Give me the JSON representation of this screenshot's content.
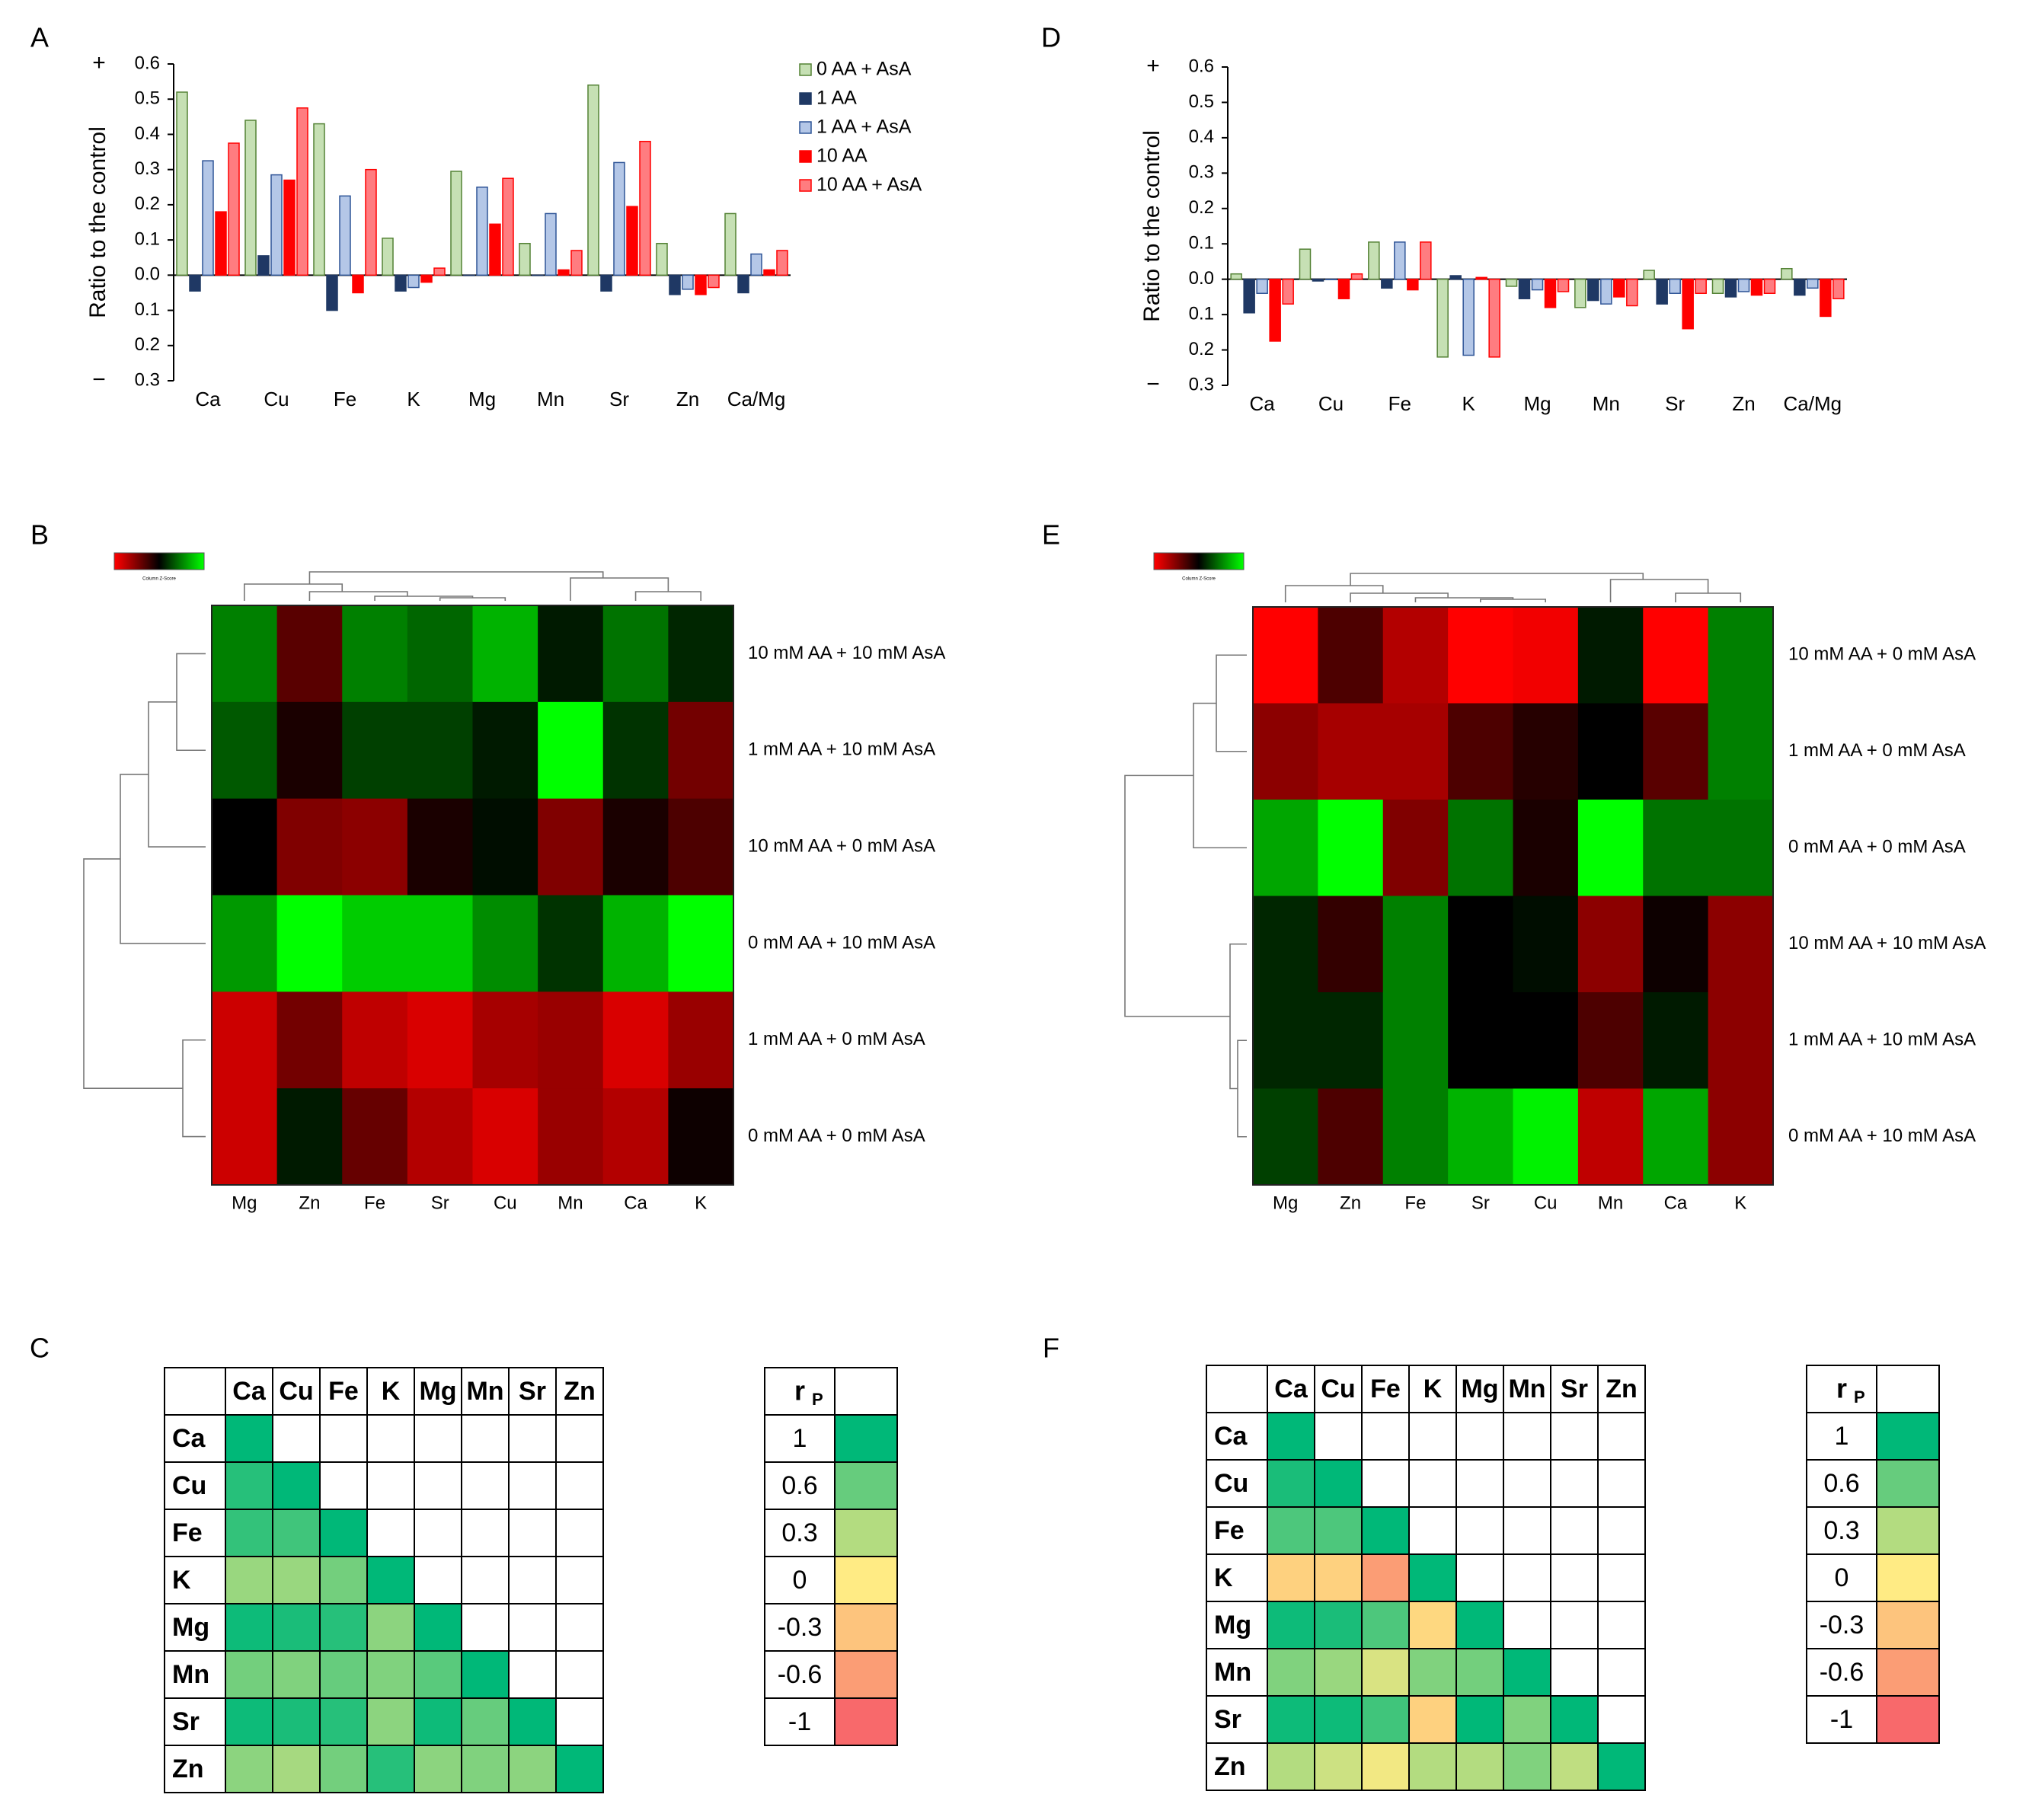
{
  "colors": {
    "s0": "#c6e0b4",
    "s0_stroke": "#548235",
    "s1": "#1f3864",
    "s2": "#b4c7e7",
    "s2_stroke": "#2f5597",
    "s3": "#ff0000",
    "s4": "#ff7c80",
    "s4_stroke": "#ff0000",
    "heat_red": "#ff0000",
    "heat_green": "#00ff00",
    "corr_pos": "#00b878",
    "corr_zero": "#ffeb84",
    "corr_neg": "#f8696b",
    "sign": "#ff0000"
  },
  "chart_data": [
    {
      "panel": "A",
      "type": "bar",
      "ylabel": "Ratio to the control",
      "plus_sign": "+",
      "minus_sign": "−",
      "yticks": [
        0.6,
        0.5,
        0.4,
        0.3,
        0.2,
        0.1,
        0.0
      ],
      "ytick_labels": [
        "0.6",
        "0.5",
        "0.4",
        "0.3",
        "0.2",
        "0.1",
        "0.0",
        "0.1",
        "0.2",
        "0.3"
      ],
      "ylim": [
        -0.3,
        0.6
      ],
      "categories": [
        "Ca",
        "Cu",
        "Fe",
        "K",
        "Mg",
        "Mn",
        "Sr",
        "Zn",
        "Ca/Mg"
      ],
      "series": [
        {
          "name": "0 AA + AsA",
          "values": [
            0.52,
            0.44,
            0.43,
            0.105,
            0.295,
            0.09,
            0.54,
            0.09,
            0.175
          ]
        },
        {
          "name": "1 AA",
          "values": [
            -0.045,
            0.055,
            -0.1,
            -0.045,
            0.0,
            0.0,
            -0.045,
            -0.055,
            -0.05
          ]
        },
        {
          "name": "1 AA + AsA",
          "values": [
            0.325,
            0.285,
            0.225,
            -0.035,
            0.25,
            0.175,
            0.32,
            -0.04,
            0.06
          ]
        },
        {
          "name": "10 AA",
          "values": [
            0.18,
            0.27,
            -0.05,
            -0.02,
            0.145,
            0.015,
            0.195,
            -0.055,
            0.015
          ]
        },
        {
          "name": "10 AA + AsA",
          "values": [
            0.375,
            0.475,
            0.3,
            0.02,
            0.275,
            0.07,
            0.38,
            -0.035,
            0.07
          ]
        }
      ]
    },
    {
      "panel": "D",
      "type": "bar",
      "ylabel": "Ratio to the control",
      "plus_sign": "+",
      "minus_sign": "−",
      "yticks": [
        0.6,
        0.5,
        0.4,
        0.3,
        0.2,
        0.1,
        0.0
      ],
      "ytick_labels": [
        "0.6",
        "0.5",
        "0.4",
        "0.3",
        "0.2",
        "0.1",
        "0.0",
        "0.1",
        "0.2",
        "0.3"
      ],
      "ylim": [
        -0.3,
        0.6
      ],
      "categories": [
        "Ca",
        "Cu",
        "Fe",
        "K",
        "Mg",
        "Mn",
        "Sr",
        "Zn",
        "Ca/Mg"
      ],
      "series": [
        {
          "name": "0 AA + AsA",
          "values": [
            0.015,
            0.085,
            0.105,
            -0.22,
            -0.02,
            -0.08,
            0.025,
            -0.04,
            0.03
          ]
        },
        {
          "name": "1 AA",
          "values": [
            -0.095,
            -0.005,
            -0.025,
            0.01,
            -0.055,
            -0.06,
            -0.07,
            -0.05,
            -0.045
          ]
        },
        {
          "name": "1 AA + AsA",
          "values": [
            -0.04,
            0.0,
            0.105,
            -0.215,
            -0.03,
            -0.07,
            -0.04,
            -0.035,
            -0.025
          ]
        },
        {
          "name": "10 AA",
          "values": [
            -0.175,
            -0.055,
            -0.03,
            0.005,
            -0.08,
            -0.05,
            -0.14,
            -0.045,
            -0.105
          ]
        },
        {
          "name": "10 AA + AsA",
          "values": [
            -0.07,
            0.015,
            0.105,
            -0.22,
            -0.035,
            -0.075,
            -0.04,
            -0.04,
            -0.055
          ]
        }
      ]
    },
    {
      "panel": "B",
      "type": "heatmap",
      "scale_caption": "Column Z-Score",
      "columns": [
        "Mg",
        "Zn",
        "Fe",
        "Sr",
        "Cu",
        "Mn",
        "Ca",
        "K"
      ],
      "rows": [
        "10 mM AA + 10 mM AsA",
        "1 mM AA + 10 mM AsA",
        "10 mM AA + 0 mM AsA",
        "0 mM AA + 10 mM AsA",
        "1 mM AA + 0 mM AsA",
        "0 mM AA + 0 mM AsA"
      ],
      "values": [
        [
          0.5,
          -0.35,
          0.5,
          0.4,
          0.7,
          0.1,
          0.45,
          0.15
        ],
        [
          0.35,
          -0.1,
          0.25,
          0.25,
          0.1,
          1.0,
          0.2,
          -0.45
        ],
        [
          0.0,
          -0.5,
          -0.55,
          -0.1,
          0.05,
          -0.5,
          -0.1,
          -0.3
        ],
        [
          0.6,
          1.0,
          0.8,
          0.8,
          0.55,
          0.2,
          0.7,
          1.0
        ],
        [
          -0.8,
          -0.45,
          -0.75,
          -0.85,
          -0.65,
          -0.6,
          -0.85,
          -0.6
        ],
        [
          -0.8,
          0.1,
          -0.4,
          -0.7,
          -0.85,
          -0.6,
          -0.7,
          -0.05
        ]
      ]
    },
    {
      "panel": "E",
      "type": "heatmap",
      "scale_caption": "Column Z-Score",
      "columns": [
        "Mg",
        "Zn",
        "Fe",
        "Sr",
        "Cu",
        "Mn",
        "Ca",
        "K"
      ],
      "rows": [
        "10 mM AA + 0 mM AsA",
        "1 mM AA + 0 mM AsA",
        "0 mM AA + 0 mM AsA",
        "10 mM AA + 10 mM AsA",
        "1 mM AA + 10 mM AsA",
        "0 mM AA + 10 mM AsA"
      ],
      "values": [
        [
          -1.0,
          -0.3,
          -0.7,
          -1.0,
          -0.95,
          0.1,
          -1.0,
          0.5
        ],
        [
          -0.55,
          -0.65,
          -0.65,
          -0.3,
          -0.15,
          0.0,
          -0.35,
          0.5
        ],
        [
          0.65,
          1.0,
          -0.5,
          0.45,
          -0.1,
          1.0,
          0.45,
          0.45
        ],
        [
          0.15,
          -0.2,
          0.5,
          0.0,
          0.05,
          -0.55,
          -0.05,
          -0.55
        ],
        [
          0.15,
          0.15,
          0.5,
          0.0,
          0.0,
          -0.3,
          0.1,
          -0.55
        ],
        [
          0.25,
          -0.3,
          0.5,
          0.7,
          0.95,
          -0.75,
          0.65,
          -0.55
        ]
      ]
    },
    {
      "panel": "C",
      "type": "table",
      "elements": [
        "Ca",
        "Cu",
        "Fe",
        "K",
        "Mg",
        "Mn",
        "Sr",
        "Zn"
      ],
      "corr": [
        [
          1.0
        ],
        [
          0.85,
          1.0
        ],
        [
          0.8,
          0.75,
          1.0
        ],
        [
          0.4,
          0.4,
          0.55,
          1.0
        ],
        [
          0.95,
          0.9,
          0.85,
          0.45,
          1.0
        ],
        [
          0.55,
          0.5,
          0.6,
          0.5,
          0.65,
          1.0
        ],
        [
          0.95,
          0.9,
          0.85,
          0.45,
          0.95,
          0.6,
          1.0
        ],
        [
          0.45,
          0.35,
          0.55,
          0.85,
          0.45,
          0.5,
          0.45,
          1.0
        ]
      ],
      "legend_header": "rP",
      "legend_values": [
        "1",
        "0.6",
        "0.3",
        "0",
        "-0.3",
        "-0.6",
        "-1"
      ],
      "legend_numeric": [
        1,
        0.6,
        0.3,
        0,
        -0.3,
        -0.6,
        -1
      ]
    },
    {
      "panel": "F",
      "type": "table",
      "elements": [
        "Ca",
        "Cu",
        "Fe",
        "K",
        "Mg",
        "Mn",
        "Sr",
        "Zn"
      ],
      "corr": [
        [
          1.0
        ],
        [
          0.9,
          1.0
        ],
        [
          0.7,
          0.7,
          1.0
        ],
        [
          -0.2,
          -0.2,
          -0.6,
          1.0
        ],
        [
          0.95,
          0.9,
          0.7,
          -0.15,
          1.0
        ],
        [
          0.5,
          0.4,
          0.15,
          0.5,
          0.55,
          1.0
        ],
        [
          0.95,
          0.95,
          0.75,
          -0.2,
          1.0,
          0.5,
          1.0
        ],
        [
          0.3,
          0.2,
          0.05,
          0.3,
          0.3,
          0.5,
          0.25,
          1.0
        ]
      ],
      "legend_header": "rP",
      "legend_values": [
        "1",
        "0.6",
        "0.3",
        "0",
        "-0.3",
        "-0.6",
        "-1"
      ],
      "legend_numeric": [
        1,
        0.6,
        0.3,
        0,
        -0.3,
        -0.6,
        -1
      ]
    }
  ]
}
